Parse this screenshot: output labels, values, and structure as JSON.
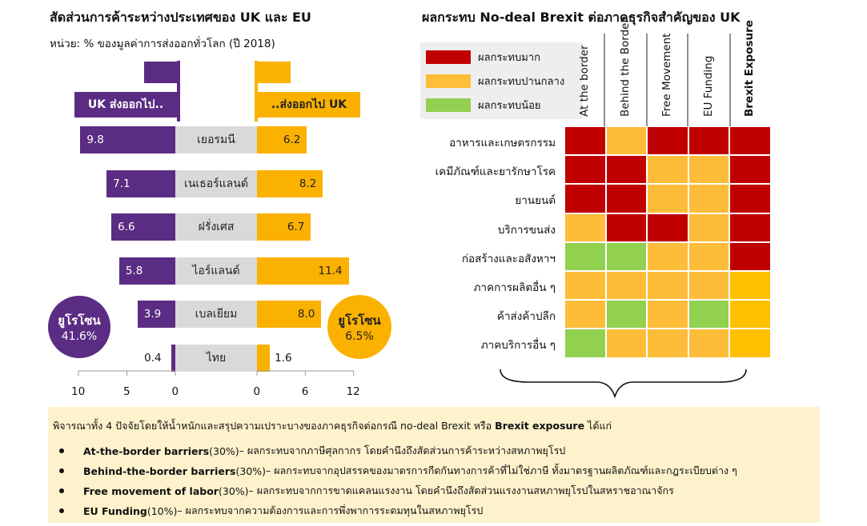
{
  "left": {
    "title": "สัดส่วนการค้าระหว่างประเทศของ UK และ EU",
    "unit": "หน่วย: % ของมูลค่าการส่งออกทั่วโลก (ปี 2018)",
    "uk_flag_label": "UK ส่งออกไป..",
    "eu_flag_label": "..ส่งออกไป UK",
    "uk_circle": {
      "label": "ยูโรโซน",
      "value": "41.6%"
    },
    "eu_circle": {
      "label": "ยูโรโซน",
      "value": "6.5%"
    }
  },
  "chart_data": [
    {
      "type": "bar",
      "title": "สัดส่วนการค้าระหว่างประเทศของ UK และ EU",
      "subtitle": "หน่วย: % ของมูลค่าการส่งออกทั่วโลก (ปี 2018)",
      "categories": [
        "เยอรมนี",
        "เนเธอร์แลนด์",
        "ฝรั่งเศส",
        "ไอร์แลนด์",
        "เบลเยียม",
        "ไทย"
      ],
      "series": [
        {
          "name": "UK ส่งออกไป..",
          "values": [
            9.8,
            7.1,
            6.6,
            5.8,
            3.9,
            0.4
          ],
          "labels": [
            "9.8",
            "7.1",
            "6.6",
            "5.8",
            "3.9",
            "0.4"
          ],
          "color": "#5b2c83"
        },
        {
          "name": "..ส่งออกไป UK",
          "values": [
            6.2,
            8.2,
            6.7,
            11.4,
            8.0,
            1.6
          ],
          "labels": [
            "6.2",
            "8.2",
            "6.7",
            "11.4",
            "8.0",
            "1.6"
          ],
          "color": "#fbb100"
        }
      ],
      "uk_axis": {
        "range": [
          10,
          0
        ],
        "ticks": [
          "10",
          "5",
          "0"
        ]
      },
      "eu_axis": {
        "range": [
          0,
          12
        ],
        "ticks": [
          "0",
          "6",
          "12"
        ]
      }
    },
    {
      "type": "heatmap",
      "title": "ผลกระทบ No-deal Brexit ต่อภาคธุรกิจสำคัญของ UK",
      "columns": [
        "At the border",
        "Behind the Border",
        "Free Movement",
        "EU Funding",
        "Brexit Exposure"
      ],
      "rows": [
        "อาหารและเกษตรกรรม",
        "เคมีภัณฑ์และยารักษาโรค",
        "ยานยนต์",
        "บริการขนส่ง",
        "ก่อสร้างและอสังหาฯ",
        "ภาคการผลิตอื่น ๆ",
        "ค้าส่งค้าปลีก",
        "ภาคบริการอื่น ๆ"
      ],
      "levels": {
        "3": "ผลกระทบมาก",
        "2": "ผลกระทบปานกลาง",
        "1": "ผลกระทบน้อย"
      },
      "values": [
        [
          3,
          2,
          3,
          3,
          3
        ],
        [
          3,
          3,
          2,
          2,
          3
        ],
        [
          3,
          3,
          2,
          2,
          3
        ],
        [
          2,
          3,
          3,
          2,
          3
        ],
        [
          1,
          1,
          2,
          2,
          3
        ],
        [
          2,
          2,
          2,
          2,
          2
        ],
        [
          2,
          1,
          2,
          1,
          2
        ],
        [
          1,
          2,
          2,
          2,
          2
        ]
      ]
    }
  ],
  "right": {
    "title": "ผลกระทบ No-deal Brexit ต่อภาคธุรกิจสำคัญของ UK",
    "legend": [
      {
        "label": "ผลกระทบมาก",
        "color": "#c00000"
      },
      {
        "label": "ผลกระทบปานกลาง",
        "color": "#fdbd39"
      },
      {
        "label": "ผลกระทบน้อย",
        "color": "#92d050"
      }
    ],
    "level_colors": {
      "3": "#c00000",
      "2": "#fdbd39",
      "1": "#92d050"
    },
    "exposure_colors": {
      "3": "#c00000",
      "2": "#ffc000",
      "1": "#92d050"
    }
  },
  "note": {
    "intro_a": "พิจารณาทั้ง 4 ปัจจัยโดยให้น้ำหนักและสรุปความเปราะบางของภาคธุรกิจต่อกรณี no-deal Brexit หรือ ",
    "intro_b": "Brexit exposure",
    "intro_c": " ได้แก่",
    "bullets": [
      {
        "name": "At-the-border barriers",
        "weight": " (30%)",
        "desc": " – ผลกระทบจากภาษีศุลกากร โดยคำนึงถึงสัดส่วนการค้าระหว่างสหภาพยุโรป"
      },
      {
        "name": "Behind-the-border barriers",
        "weight": " (30%)",
        "desc": " – ผลกระทบจากอุปสรรคของมาตรการกีดกันทางการค้าที่ไม่ใช่ภาษี ทั้งมาตรฐานผลิตภัณฑ์และกฎระเบียบต่าง ๆ"
      },
      {
        "name": "Free movement of labor",
        "weight": " (30%)",
        "desc": " – ผลกระทบจากการขาดแคลนแรงงาน โดยคำนึงถึงสัดส่วนแรงงานสหภาพยุโรปในสหราชอาณาจักร"
      },
      {
        "name": "EU Funding",
        "weight": " (10%)",
        "desc": " – ผลกระทบจากความต้องการและการพึ่งพาการระดมทุนในสหภาพยุโรป"
      }
    ]
  }
}
